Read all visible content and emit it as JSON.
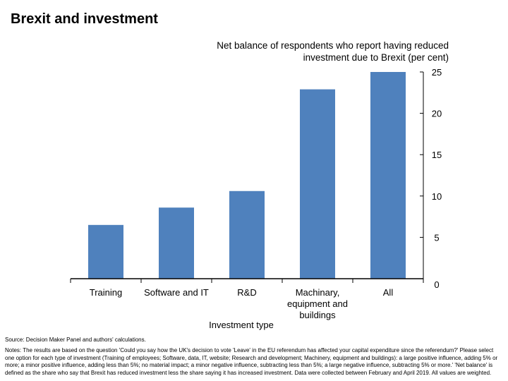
{
  "page": {
    "title": "Brexit and investment"
  },
  "chart_data": {
    "type": "bar",
    "title": "Net balance of respondents who report having reduced investment due to Brexit (per cent)",
    "xlabel": "Investment type",
    "ylabel": "",
    "categories": [
      "Training",
      "Software and IT",
      "R&D",
      "Machinary, equipment and buildings",
      "All"
    ],
    "category_lines": [
      [
        "Training"
      ],
      [
        "Software and IT"
      ],
      [
        "R&D"
      ],
      [
        "Machinary,",
        "equipment and",
        "buildings"
      ],
      [
        "All"
      ]
    ],
    "values": [
      6.5,
      8.6,
      10.6,
      22.9,
      25.0
    ],
    "ylim": [
      0,
      25
    ],
    "yticks": [
      "0",
      "5",
      "10",
      "15",
      "20",
      "25"
    ],
    "y_axis_side": "right",
    "grid": false,
    "bar_color": "#4f81bd"
  },
  "footer": {
    "source": "Source: Decision Maker Panel and authors' calculations.",
    "notes": "Notes: The results are based on the question 'Could you say how the UK's decision to vote 'Leave' in the EU referendum has affected your capital expenditure since the referendum?' Please select one option for each type of investment (Training of employees; Software, data, IT, website; Research and development; Machinery, equipment and buildings): a large positive influence, adding 5% or more; a minor positive influence, adding less than 5%; no material impact; a minor negative influence, subtracting less than 5%; a large negative influence, subtracting 5% or more.' 'Net balance' is defined as the share who say that Brexit has reduced investment less the share saying it has increased investment. Data were collected between February and April 2019. All values are weighted."
  }
}
